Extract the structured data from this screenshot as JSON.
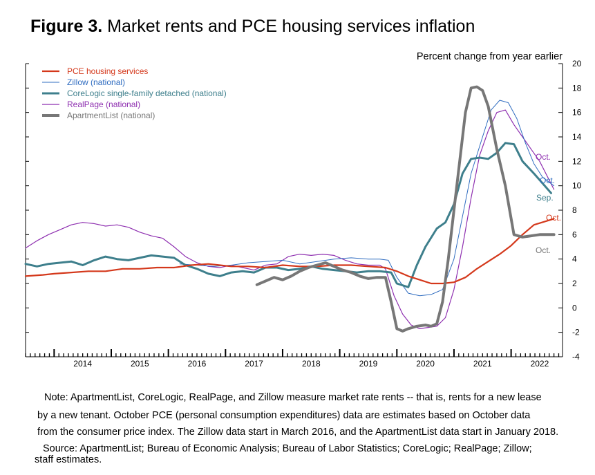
{
  "figure": {
    "label": "Figure 3",
    "dot": ".",
    "title_text": " Market rents and PCE housing services inflation"
  },
  "notes": {
    "line1": "Note: ApartmentList, CoreLogic, RealPage, and Zillow measure market rate rents -- that is, rents for a new lease",
    "line2": "by a new tenant. October PCE (personal consumption expenditures) data are estimates based on October data",
    "line3": "from the consumer price index. The Zillow data start in March 2016, and the ApartmentList data start in January 2018.",
    "source1": "Source: ApartmentList; Bureau of Economic Analysis; Bureau of Labor Statistics; CoreLogic; RealPage; Zillow;",
    "source2": "staff estimates."
  },
  "chart_data": {
    "type": "line",
    "ylabel": "Percent change from year earlier",
    "ylim": [
      -4,
      20
    ],
    "yticks": [
      -4,
      -2,
      0,
      2,
      4,
      6,
      8,
      10,
      12,
      14,
      16,
      18,
      20
    ],
    "xlim": [
      2013.5,
      2022.9
    ],
    "xticks": [
      "2014",
      "2015",
      "2016",
      "2017",
      "2018",
      "2019",
      "2020",
      "2021",
      "2022"
    ],
    "grid": false,
    "legend_position": "top-left",
    "colors": {
      "pce": "#d4381b",
      "zillow": "#2f6cc0",
      "corelogic": "#3e7f8c",
      "realpage": "#8e2fb0",
      "apartmentlist": "#777777"
    },
    "series": [
      {
        "name": "PCE housing services",
        "key": "pce",
        "end_label": "Oct.",
        "x": [
          2013.5,
          2013.8,
          2014.0,
          2014.3,
          2014.6,
          2014.9,
          2015.2,
          2015.5,
          2015.8,
          2016.1,
          2016.4,
          2016.7,
          2016.9,
          2017.1,
          2017.4,
          2017.7,
          2018.0,
          2018.3,
          2018.6,
          2018.9,
          2019.2,
          2019.5,
          2019.8,
          2020.0,
          2020.2,
          2020.4,
          2020.6,
          2020.8,
          2021.0,
          2021.2,
          2021.4,
          2021.6,
          2021.8,
          2022.0,
          2022.2,
          2022.4,
          2022.75
        ],
        "y": [
          2.6,
          2.7,
          2.8,
          2.9,
          3.0,
          3.0,
          3.2,
          3.2,
          3.3,
          3.3,
          3.5,
          3.6,
          3.5,
          3.4,
          3.4,
          3.3,
          3.5,
          3.4,
          3.4,
          3.5,
          3.5,
          3.4,
          3.3,
          3.0,
          2.6,
          2.3,
          2.0,
          2.0,
          2.1,
          2.5,
          3.2,
          3.8,
          4.4,
          5.1,
          6.0,
          6.8,
          7.3
        ]
      },
      {
        "name": "Zillow (national)",
        "key": "zillow",
        "end_label": "Oct.",
        "x": [
          2016.2,
          2016.5,
          2016.8,
          2017.1,
          2017.4,
          2017.7,
          2018.0,
          2018.3,
          2018.6,
          2018.9,
          2019.2,
          2019.5,
          2019.7,
          2019.85,
          2020.0,
          2020.2,
          2020.4,
          2020.6,
          2020.8,
          2021.0,
          2021.15,
          2021.3,
          2021.5,
          2021.65,
          2021.8,
          2021.95,
          2022.1,
          2022.25,
          2022.4,
          2022.55,
          2022.75
        ],
        "y": [
          3.6,
          3.5,
          3.4,
          3.5,
          3.7,
          3.8,
          3.9,
          3.6,
          3.8,
          4.0,
          4.1,
          4.0,
          4.0,
          3.9,
          2.5,
          1.2,
          1.0,
          1.1,
          1.5,
          4.0,
          7.5,
          11.0,
          14.0,
          16.2,
          17.0,
          16.8,
          15.5,
          13.5,
          11.8,
          10.7,
          10.0
        ]
      },
      {
        "name": "CoreLogic single-family detached (national)",
        "key": "corelogic",
        "end_label": "Sep.",
        "x": [
          2013.5,
          2013.7,
          2013.9,
          2014.1,
          2014.3,
          2014.5,
          2014.7,
          2014.9,
          2015.1,
          2015.3,
          2015.5,
          2015.7,
          2015.9,
          2016.1,
          2016.3,
          2016.5,
          2016.7,
          2016.9,
          2017.1,
          2017.3,
          2017.5,
          2017.7,
          2017.9,
          2018.1,
          2018.3,
          2018.5,
          2018.7,
          2018.9,
          2019.1,
          2019.3,
          2019.5,
          2019.7,
          2019.9,
          2020.0,
          2020.2,
          2020.35,
          2020.5,
          2020.7,
          2020.85,
          2021.0,
          2021.15,
          2021.3,
          2021.45,
          2021.6,
          2021.75,
          2021.9,
          2022.05,
          2022.2,
          2022.4,
          2022.55,
          2022.7
        ],
        "y": [
          3.6,
          3.4,
          3.6,
          3.7,
          3.8,
          3.5,
          3.9,
          4.2,
          4.0,
          3.9,
          4.1,
          4.3,
          4.2,
          4.1,
          3.5,
          3.2,
          2.8,
          2.6,
          2.9,
          3.0,
          2.9,
          3.3,
          3.3,
          3.1,
          3.2,
          3.4,
          3.2,
          3.1,
          3.0,
          2.9,
          3.0,
          3.0,
          2.9,
          2.0,
          1.7,
          3.5,
          5.0,
          6.5,
          7.0,
          8.5,
          11.0,
          12.2,
          12.3,
          12.2,
          12.7,
          13.5,
          13.4,
          12.0,
          11.0,
          10.2,
          9.4
        ]
      },
      {
        "name": "RealPage (national)",
        "key": "realpage",
        "end_label": "Oct.",
        "x": [
          2013.5,
          2013.7,
          2013.9,
          2014.1,
          2014.3,
          2014.5,
          2014.7,
          2014.9,
          2015.1,
          2015.3,
          2015.5,
          2015.7,
          2015.9,
          2016.1,
          2016.3,
          2016.5,
          2016.7,
          2016.9,
          2017.1,
          2017.3,
          2017.5,
          2017.7,
          2017.9,
          2018.1,
          2018.3,
          2018.5,
          2018.7,
          2018.9,
          2019.1,
          2019.3,
          2019.5,
          2019.7,
          2019.8,
          2019.95,
          2020.1,
          2020.25,
          2020.4,
          2020.55,
          2020.7,
          2020.85,
          2021.0,
          2021.15,
          2021.3,
          2021.45,
          2021.6,
          2021.75,
          2021.9,
          2022.05,
          2022.2,
          2022.35,
          2022.5,
          2022.75
        ],
        "y": [
          4.9,
          5.5,
          6.0,
          6.4,
          6.8,
          7.0,
          6.9,
          6.7,
          6.8,
          6.6,
          6.2,
          5.9,
          5.7,
          5.0,
          4.2,
          3.7,
          3.4,
          3.3,
          3.5,
          3.3,
          3.1,
          3.5,
          3.6,
          4.2,
          4.4,
          4.3,
          4.4,
          4.3,
          3.9,
          3.6,
          3.5,
          3.5,
          3.2,
          1.0,
          -0.5,
          -1.4,
          -1.7,
          -1.6,
          -1.5,
          -0.8,
          1.5,
          5.0,
          9.0,
          12.5,
          14.5,
          16.0,
          16.2,
          15.0,
          14.0,
          13.0,
          12.0,
          9.7
        ]
      },
      {
        "name": "ApartmentList (national)",
        "key": "apartmentlist",
        "end_label": "Oct.",
        "x": [
          2017.55,
          2017.7,
          2017.85,
          2018.0,
          2018.15,
          2018.3,
          2018.45,
          2018.6,
          2018.75,
          2018.9,
          2019.05,
          2019.2,
          2019.35,
          2019.5,
          2019.65,
          2019.8,
          2019.9,
          2020.0,
          2020.1,
          2020.2,
          2020.35,
          2020.5,
          2020.6,
          2020.7,
          2020.8,
          2020.9,
          2021.0,
          2021.1,
          2021.2,
          2021.3,
          2021.4,
          2021.5,
          2021.6,
          2021.75,
          2021.9,
          2022.05,
          2022.2,
          2022.35,
          2022.5,
          2022.75
        ],
        "y": [
          1.9,
          2.2,
          2.5,
          2.3,
          2.6,
          3.0,
          3.3,
          3.5,
          3.7,
          3.4,
          3.1,
          2.9,
          2.6,
          2.4,
          2.5,
          2.5,
          0.5,
          -1.7,
          -1.9,
          -1.7,
          -1.5,
          -1.4,
          -1.5,
          -1.3,
          0.5,
          4.0,
          8.0,
          12.0,
          16.0,
          18.0,
          18.1,
          17.8,
          16.5,
          13.0,
          10.0,
          6.0,
          5.8,
          5.9,
          6.0,
          6.0
        ]
      }
    ]
  }
}
